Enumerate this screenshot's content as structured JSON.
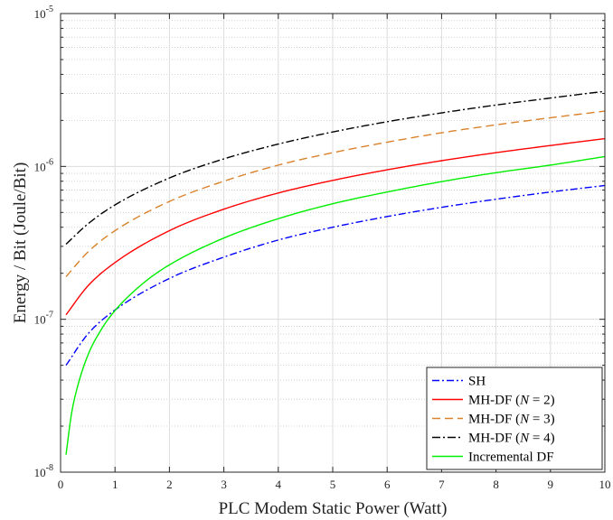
{
  "chart_data": {
    "type": "line",
    "xlabel": "PLC Modem Static Power (Watt)",
    "ylabel": "Energy / Bit (Joule/Bit)",
    "xlim": [
      0,
      10
    ],
    "ylim": [
      1e-08,
      1e-05
    ],
    "yscale": "log",
    "grid": true,
    "legend_position": "bottom-right",
    "x_ticks": [
      "0",
      "1",
      "2",
      "3",
      "4",
      "5",
      "6",
      "7",
      "8",
      "9",
      "10"
    ],
    "y_ticks": [
      {
        "base": "10",
        "exp": "-8"
      },
      {
        "base": "10",
        "exp": "-7"
      },
      {
        "base": "10",
        "exp": "-6"
      },
      {
        "base": "10",
        "exp": "-5"
      }
    ],
    "series": [
      {
        "name": "SH",
        "legend": {
          "pre": "SH",
          "var": "",
          "post": ""
        },
        "color": "#0000ff",
        "dash": "8,3,2,3",
        "x": [
          0.1,
          0.5,
          1,
          2,
          3,
          4,
          5,
          6,
          7,
          8,
          9,
          10
        ],
        "y": [
          5e-08,
          8e-08,
          1.15e-07,
          1.85e-07,
          2.55e-07,
          3.3e-07,
          4e-07,
          4.7e-07,
          5.4e-07,
          6.1e-07,
          6.8e-07,
          7.5e-07
        ]
      },
      {
        "name": "MH-DF (N = 2)",
        "legend": {
          "pre": "MH-DF (",
          "var": "N",
          "post": " = 2)"
        },
        "color": "#ff0000",
        "dash": "",
        "x": [
          0.1,
          0.5,
          1,
          2,
          3,
          4,
          5,
          6,
          7,
          8,
          9,
          10
        ],
        "y": [
          1.07e-07,
          1.65e-07,
          2.35e-07,
          3.8e-07,
          5.25e-07,
          6.7e-07,
          8.1e-07,
          9.5e-07,
          1.09e-06,
          1.23e-06,
          1.37e-06,
          1.52e-06
        ]
      },
      {
        "name": "MH-DF (N = 3)",
        "legend": {
          "pre": "MH-DF (",
          "var": "N",
          "post": " = 3)"
        },
        "color": "#d9822b",
        "dash": "9,5",
        "x": [
          0.1,
          0.5,
          1,
          2,
          3,
          4,
          5,
          6,
          7,
          8,
          9,
          10
        ],
        "y": [
          1.9e-07,
          2.75e-07,
          3.8e-07,
          5.9e-07,
          8e-07,
          1.02e-06,
          1.23e-06,
          1.44e-06,
          1.66e-06,
          1.87e-06,
          2.08e-06,
          2.3e-06
        ]
      },
      {
        "name": "MH-DF (N = 4)",
        "legend": {
          "pre": "MH-DF (",
          "var": "N",
          "post": " = 4)"
        },
        "color": "#000000",
        "dash": "9,3,2,3",
        "x": [
          0.1,
          0.5,
          1,
          2,
          3,
          4,
          5,
          6,
          7,
          8,
          9,
          10
        ],
        "y": [
          3.1e-07,
          4.2e-07,
          5.6e-07,
          8.4e-07,
          1.12e-06,
          1.4e-06,
          1.68e-06,
          1.96e-06,
          2.24e-06,
          2.52e-06,
          2.8e-06,
          3.1e-06
        ]
      },
      {
        "name": "Incremental DF",
        "legend": {
          "pre": "Incremental DF",
          "var": "",
          "post": ""
        },
        "color": "#00ee00",
        "dash": "",
        "x": [
          0.1,
          0.2,
          0.3,
          0.5,
          0.75,
          1,
          1.5,
          2,
          3,
          4,
          5,
          6,
          7,
          8,
          9,
          10
        ],
        "y": [
          1.3e-08,
          2.4e-08,
          3.5e-08,
          5.8e-08,
          8.6e-08,
          1.14e-07,
          1.7e-07,
          2.27e-07,
          3.4e-07,
          4.55e-07,
          5.7e-07,
          6.8e-07,
          7.95e-07,
          9.1e-07,
          1.02e-06,
          1.16e-06
        ]
      }
    ]
  }
}
